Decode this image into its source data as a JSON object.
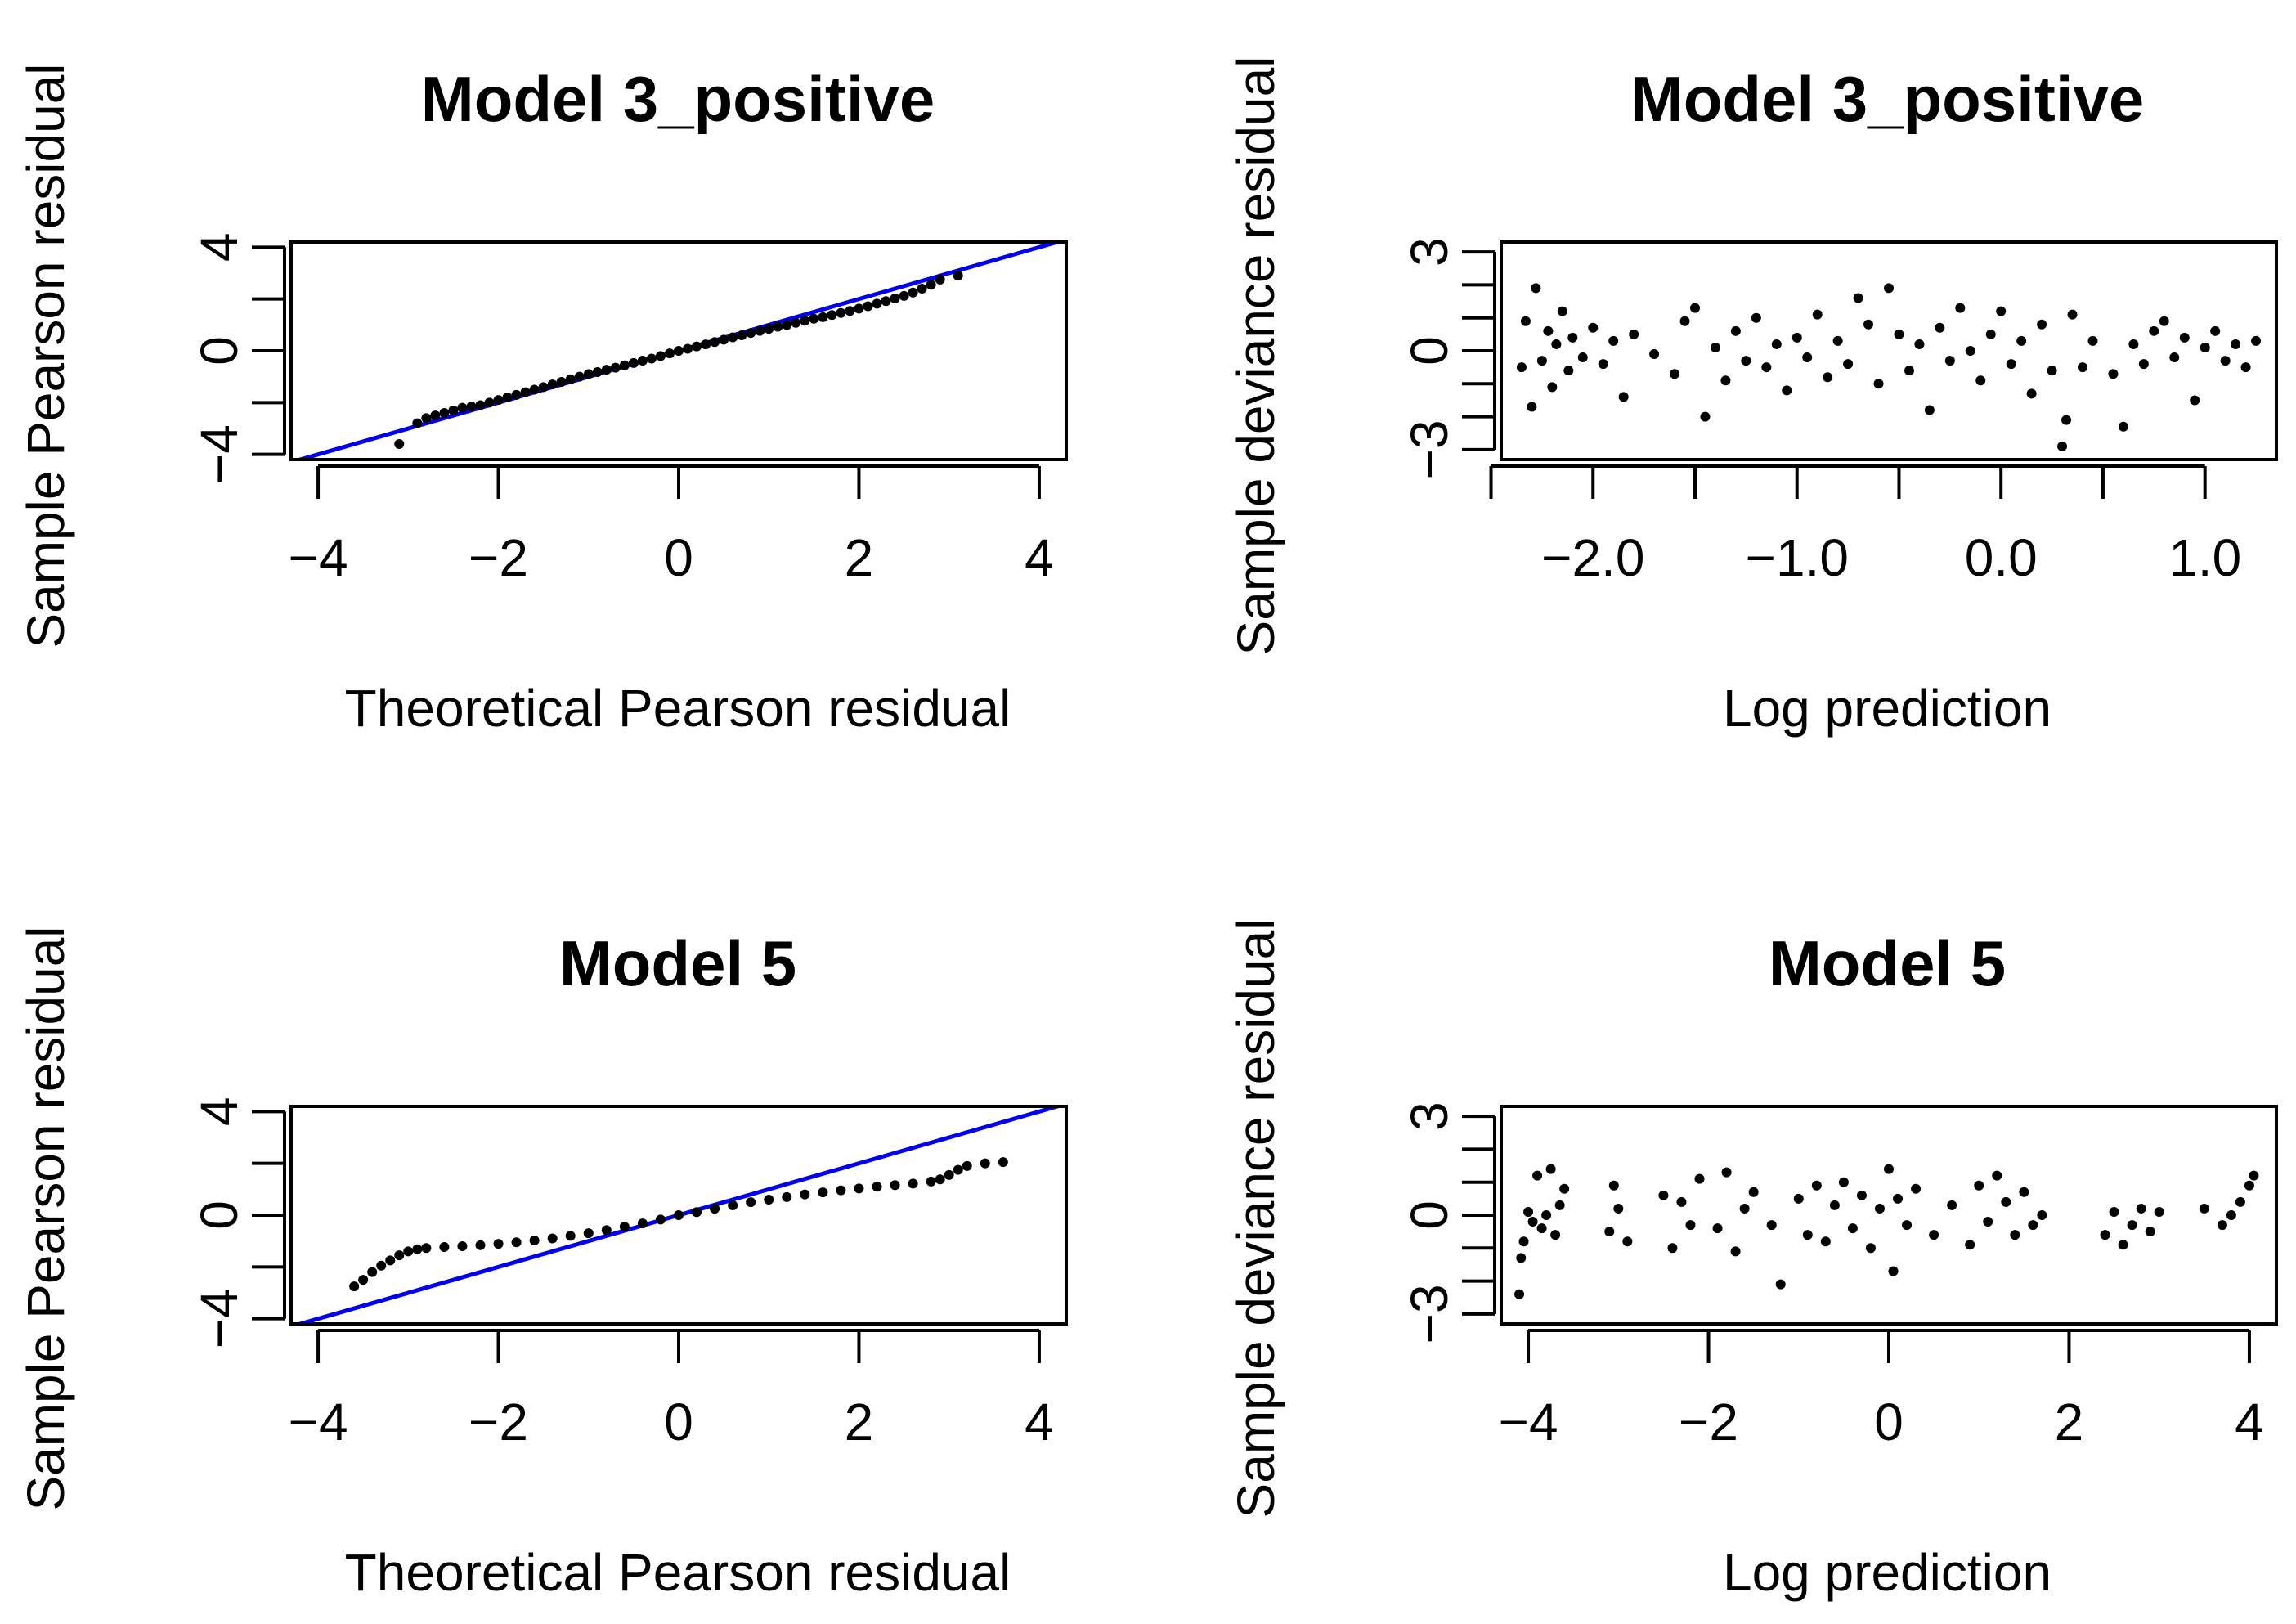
{
  "chart_data": [
    {
      "type": "scatter",
      "title": "Model 3_positive",
      "xlabel": "Theoretical Pearson residual",
      "ylabel": "Sample Pearson residual",
      "xlim": [
        -4.3,
        4.3
      ],
      "ylim": [
        -4.2,
        4.2
      ],
      "x_ticks": [
        -4,
        -2,
        0,
        2,
        4
      ],
      "x_tick_labels": [
        "−4",
        "−2",
        "0",
        "2",
        "4"
      ],
      "y_ticks": [
        -4,
        -2,
        0,
        2,
        4
      ],
      "y_tick_labels": [
        "−4",
        "",
        "0",
        "",
        "4"
      ],
      "reference_line": {
        "intercept": 0,
        "slope": 1,
        "color": "#0000ee"
      },
      "series": [
        {
          "kind": "qq",
          "x": [
            -3.1,
            -2.9,
            -2.8,
            -2.7,
            -2.6,
            -2.5,
            -2.4,
            -2.3,
            -2.2,
            -2.1,
            -2.0,
            -1.9,
            -1.8,
            -1.7,
            -1.6,
            -1.5,
            -1.4,
            -1.3,
            -1.2,
            -1.1,
            -1.0,
            -0.9,
            -0.8,
            -0.7,
            -0.6,
            -0.5,
            -0.4,
            -0.3,
            -0.2,
            -0.1,
            0.0,
            0.1,
            0.2,
            0.3,
            0.4,
            0.5,
            0.6,
            0.7,
            0.8,
            0.9,
            1.0,
            1.1,
            1.2,
            1.3,
            1.4,
            1.5,
            1.6,
            1.7,
            1.8,
            1.9,
            2.0,
            2.1,
            2.2,
            2.3,
            2.4,
            2.5,
            2.6,
            2.7,
            2.8,
            2.9,
            3.1
          ],
          "y": [
            -3.6,
            -2.8,
            -2.6,
            -2.5,
            -2.4,
            -2.3,
            -2.2,
            -2.15,
            -2.1,
            -2.0,
            -1.9,
            -1.8,
            -1.7,
            -1.6,
            -1.5,
            -1.4,
            -1.3,
            -1.2,
            -1.1,
            -1.0,
            -0.9,
            -0.82,
            -0.73,
            -0.65,
            -0.56,
            -0.47,
            -0.38,
            -0.3,
            -0.2,
            -0.1,
            0.0,
            0.08,
            0.17,
            0.25,
            0.34,
            0.43,
            0.52,
            0.6,
            0.69,
            0.77,
            0.85,
            0.93,
            1.0,
            1.08,
            1.16,
            1.24,
            1.3,
            1.38,
            1.46,
            1.54,
            1.63,
            1.72,
            1.82,
            1.92,
            2.02,
            2.12,
            2.25,
            2.4,
            2.55,
            2.75,
            2.9
          ]
        }
      ]
    },
    {
      "type": "scatter",
      "title": "Model 3_positive",
      "xlabel": "Log prediction",
      "ylabel": "Sample deviance residual",
      "xlim": [
        -2.45,
        1.35
      ],
      "ylim": [
        -3.3,
        3.3
      ],
      "x_ticks": [
        -2.5,
        -2.0,
        -1.5,
        -1.0,
        -0.5,
        0.0,
        0.5,
        1.0
      ],
      "x_tick_labels": [
        "",
        "−2.0",
        "",
        "−1.0",
        "",
        "0.0",
        "",
        "1.0"
      ],
      "y_ticks": [
        -3,
        -2,
        -1,
        0,
        1,
        2,
        3
      ],
      "y_tick_labels": [
        "−3",
        "",
        "",
        "0",
        "",
        "",
        "3"
      ],
      "series": [
        {
          "kind": "scatter",
          "x": [
            -2.35,
            -2.33,
            -2.3,
            -2.28,
            -2.25,
            -2.22,
            -2.2,
            -2.18,
            -2.15,
            -2.12,
            -2.1,
            -2.05,
            -2.0,
            -1.95,
            -1.9,
            -1.85,
            -1.8,
            -1.7,
            -1.6,
            -1.55,
            -1.5,
            -1.45,
            -1.4,
            -1.35,
            -1.3,
            -1.25,
            -1.2,
            -1.15,
            -1.1,
            -1.05,
            -1.0,
            -0.95,
            -0.9,
            -0.85,
            -0.8,
            -0.75,
            -0.7,
            -0.65,
            -0.6,
            -0.55,
            -0.5,
            -0.45,
            -0.4,
            -0.35,
            -0.3,
            -0.25,
            -0.2,
            -0.15,
            -0.1,
            -0.05,
            0.0,
            0.05,
            0.1,
            0.15,
            0.2,
            0.25,
            0.3,
            0.32,
            0.35,
            0.4,
            0.45,
            0.55,
            0.6,
            0.65,
            0.7,
            0.75,
            0.8,
            0.85,
            0.9,
            0.95,
            1.0,
            1.05,
            1.1,
            1.15,
            1.2,
            1.25
          ],
          "y": [
            -0.5,
            0.9,
            -1.7,
            1.9,
            -0.3,
            0.6,
            -1.1,
            0.2,
            1.2,
            -0.6,
            0.4,
            -0.2,
            0.7,
            -0.4,
            0.3,
            -1.4,
            0.5,
            -0.1,
            -0.7,
            0.9,
            1.3,
            -2.0,
            0.1,
            -0.9,
            0.6,
            -0.3,
            1.0,
            -0.5,
            0.2,
            -1.2,
            0.4,
            -0.2,
            1.1,
            -0.8,
            0.3,
            -0.4,
            1.6,
            0.8,
            -1.0,
            1.9,
            0.5,
            -0.6,
            0.2,
            -1.8,
            0.7,
            -0.3,
            1.3,
            0.0,
            -0.9,
            0.5,
            1.2,
            -0.4,
            0.3,
            -1.3,
            0.8,
            -0.6,
            -2.9,
            -2.1,
            1.1,
            -0.5,
            0.3,
            -0.7,
            -2.3,
            0.2,
            -0.4,
            0.6,
            0.9,
            -0.2,
            0.4,
            -1.5,
            0.1,
            0.6,
            -0.3,
            0.2,
            -0.5,
            0.3
          ]
        }
      ]
    },
    {
      "type": "scatter",
      "title": "Model 5",
      "xlabel": "Theoretical Pearson residual",
      "ylabel": "Sample Pearson residual",
      "xlim": [
        -4.3,
        4.3
      ],
      "ylim": [
        -4.2,
        4.2
      ],
      "x_ticks": [
        -4,
        -2,
        0,
        2,
        4
      ],
      "x_tick_labels": [
        "−4",
        "−2",
        "0",
        "2",
        "4"
      ],
      "y_ticks": [
        -4,
        -2,
        0,
        2,
        4
      ],
      "y_tick_labels": [
        "−4",
        "",
        "0",
        "",
        "4"
      ],
      "reference_line": {
        "intercept": 0,
        "slope": 1,
        "color": "#0000ee"
      },
      "series": [
        {
          "kind": "qq",
          "x": [
            -3.6,
            -3.5,
            -3.4,
            -3.3,
            -3.2,
            -3.1,
            -3.0,
            -2.9,
            -2.8,
            -2.6,
            -2.4,
            -2.2,
            -2.0,
            -1.8,
            -1.6,
            -1.4,
            -1.2,
            -1.0,
            -0.8,
            -0.6,
            -0.4,
            -0.2,
            0.0,
            0.2,
            0.4,
            0.6,
            0.8,
            1.0,
            1.2,
            1.4,
            1.6,
            1.8,
            2.0,
            2.2,
            2.4,
            2.6,
            2.8,
            2.9,
            3.0,
            3.1,
            3.2,
            3.4,
            3.6
          ],
          "y": [
            -2.75,
            -2.5,
            -2.2,
            -1.95,
            -1.75,
            -1.55,
            -1.4,
            -1.32,
            -1.27,
            -1.23,
            -1.2,
            -1.16,
            -1.11,
            -1.05,
            -0.98,
            -0.9,
            -0.8,
            -0.7,
            -0.58,
            -0.45,
            -0.32,
            -0.17,
            0.0,
            0.12,
            0.25,
            0.38,
            0.5,
            0.6,
            0.7,
            0.8,
            0.88,
            0.96,
            1.03,
            1.1,
            1.16,
            1.22,
            1.3,
            1.38,
            1.55,
            1.75,
            1.9,
            2.0,
            2.05
          ]
        }
      ]
    },
    {
      "type": "scatter",
      "title": "Model 5",
      "xlabel": "Log prediction",
      "ylabel": "Sample deviance residual",
      "xlim": [
        -4.3,
        4.3
      ],
      "ylim": [
        -3.3,
        3.3
      ],
      "x_ticks": [
        -4,
        -2,
        0,
        2,
        4
      ],
      "x_tick_labels": [
        "−4",
        "−2",
        "0",
        "2",
        "4"
      ],
      "y_ticks": [
        -3,
        -2,
        -1,
        0,
        1,
        2,
        3
      ],
      "y_tick_labels": [
        "−3",
        "",
        "",
        "0",
        "",
        "",
        "3"
      ],
      "series": [
        {
          "kind": "scatter",
          "x": [
            -4.1,
            -4.08,
            -4.05,
            -4.0,
            -3.95,
            -3.9,
            -3.85,
            -3.8,
            -3.75,
            -3.7,
            -3.65,
            -3.6,
            -3.1,
            -3.05,
            -3.0,
            -2.9,
            -2.5,
            -2.4,
            -2.3,
            -2.2,
            -2.1,
            -1.9,
            -1.8,
            -1.7,
            -1.6,
            -1.5,
            -1.3,
            -1.2,
            -1.0,
            -0.9,
            -0.8,
            -0.7,
            -0.6,
            -0.5,
            -0.4,
            -0.3,
            -0.2,
            -0.1,
            0.0,
            0.05,
            0.1,
            0.2,
            0.3,
            0.5,
            0.7,
            0.9,
            1.0,
            1.1,
            1.2,
            1.3,
            1.4,
            1.5,
            1.6,
            1.7,
            2.4,
            2.5,
            2.6,
            2.7,
            2.8,
            2.9,
            3.0,
            3.5,
            3.7,
            3.8,
            3.9,
            4.0,
            4.05
          ],
          "y": [
            -2.4,
            -1.3,
            -0.8,
            0.1,
            -0.2,
            1.2,
            -0.4,
            0.0,
            1.4,
            -0.6,
            0.3,
            0.8,
            -0.5,
            0.9,
            0.2,
            -0.8,
            0.6,
            -1.0,
            0.4,
            -0.3,
            1.1,
            -0.4,
            1.3,
            -1.1,
            0.2,
            0.7,
            -0.3,
            -2.1,
            0.5,
            -0.6,
            0.9,
            -0.8,
            0.3,
            1.0,
            -0.4,
            0.6,
            -1.0,
            0.2,
            1.4,
            -1.7,
            0.5,
            -0.3,
            0.8,
            -0.6,
            0.3,
            -0.9,
            0.9,
            -0.2,
            1.2,
            0.4,
            -0.6,
            0.7,
            -0.3,
            0.0,
            -0.6,
            0.1,
            -0.9,
            -0.3,
            0.2,
            -0.5,
            0.1,
            0.2,
            -0.3,
            0.0,
            0.4,
            0.9,
            1.2
          ]
        }
      ]
    }
  ]
}
